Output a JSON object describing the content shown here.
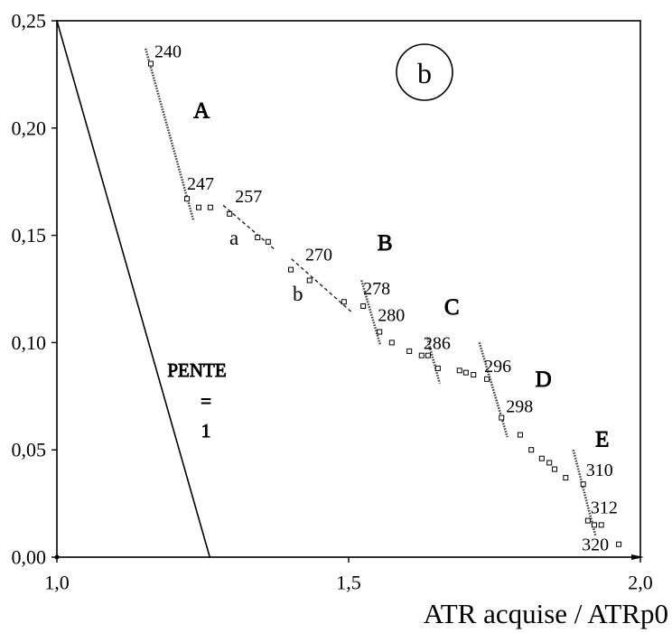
{
  "chart_data": {
    "type": "scatter",
    "panel_label": "b",
    "xlabel": "ATR acquise / ATRp0",
    "xlim": [
      1.0,
      2.0
    ],
    "ylim": [
      0.0,
      0.25
    ],
    "x_ticks": [
      1.0,
      1.5,
      2.0
    ],
    "x_tick_labels": [
      "1,0",
      "1,5",
      "2,0"
    ],
    "y_ticks": [
      0.0,
      0.05,
      0.1,
      0.15,
      0.2,
      0.25
    ],
    "y_tick_labels": [
      "0,00",
      "0,05",
      "0,10",
      "0,15",
      "0,20",
      "0,25"
    ],
    "grid": false,
    "points": [
      {
        "x": 1.161,
        "y": 0.23,
        "label": "240"
      },
      {
        "x": 1.223,
        "y": 0.167,
        "label": "247"
      },
      {
        "x": 1.243,
        "y": 0.163
      },
      {
        "x": 1.263,
        "y": 0.163
      },
      {
        "x": 1.296,
        "y": 0.16,
        "label": "257"
      },
      {
        "x": 1.344,
        "y": 0.149
      },
      {
        "x": 1.362,
        "y": 0.147
      },
      {
        "x": 1.401,
        "y": 0.134,
        "label": "270"
      },
      {
        "x": 1.433,
        "y": 0.129
      },
      {
        "x": 1.492,
        "y": 0.119
      },
      {
        "x": 1.525,
        "y": 0.117,
        "label": "278"
      },
      {
        "x": 1.553,
        "y": 0.105,
        "label": "280"
      },
      {
        "x": 1.574,
        "y": 0.1
      },
      {
        "x": 1.604,
        "y": 0.096
      },
      {
        "x": 1.625,
        "y": 0.094
      },
      {
        "x": 1.636,
        "y": 0.094,
        "label": "286"
      },
      {
        "x": 1.653,
        "y": 0.088
      },
      {
        "x": 1.69,
        "y": 0.087
      },
      {
        "x": 1.701,
        "y": 0.086
      },
      {
        "x": 1.714,
        "y": 0.085
      },
      {
        "x": 1.737,
        "y": 0.083,
        "label": "296"
      },
      {
        "x": 1.762,
        "y": 0.065,
        "label": "298"
      },
      {
        "x": 1.794,
        "y": 0.057
      },
      {
        "x": 1.813,
        "y": 0.05
      },
      {
        "x": 1.831,
        "y": 0.046
      },
      {
        "x": 1.844,
        "y": 0.044
      },
      {
        "x": 1.853,
        "y": 0.041
      },
      {
        "x": 1.872,
        "y": 0.037
      },
      {
        "x": 1.902,
        "y": 0.034,
        "label": "310"
      },
      {
        "x": 1.91,
        "y": 0.017,
        "label": "312"
      },
      {
        "x": 1.921,
        "y": 0.015
      },
      {
        "x": 1.933,
        "y": 0.015
      },
      {
        "x": 1.963,
        "y": 0.006,
        "label": "320"
      }
    ],
    "lines": [
      {
        "style": "solid",
        "label": [
          "PENTE",
          "=",
          "1"
        ],
        "x": [
          1.0,
          1.262
        ],
        "y": [
          0.25,
          0.0
        ]
      },
      {
        "style": "dotted",
        "label": "A",
        "x": [
          1.152,
          1.234
        ],
        "y": [
          0.237,
          0.157
        ]
      },
      {
        "style": "dashed",
        "label": "a",
        "x": [
          1.285,
          1.375
        ],
        "y": [
          0.164,
          0.143
        ]
      },
      {
        "style": "dashed",
        "label": "b",
        "x": [
          1.402,
          1.506
        ],
        "y": [
          0.139,
          0.114
        ]
      },
      {
        "style": "dotted",
        "label": "B",
        "x": [
          1.522,
          1.554
        ],
        "y": [
          0.129,
          0.099
        ]
      },
      {
        "style": "dotted",
        "label": "C",
        "x": [
          1.635,
          1.656
        ],
        "y": [
          0.102,
          0.081
        ]
      },
      {
        "style": "dotted",
        "label": "D",
        "x": [
          1.724,
          1.772
        ],
        "y": [
          0.1,
          0.056
        ]
      },
      {
        "style": "dotted",
        "label": "E",
        "x": [
          1.885,
          1.923
        ],
        "y": [
          0.05,
          0.01
        ]
      }
    ]
  }
}
